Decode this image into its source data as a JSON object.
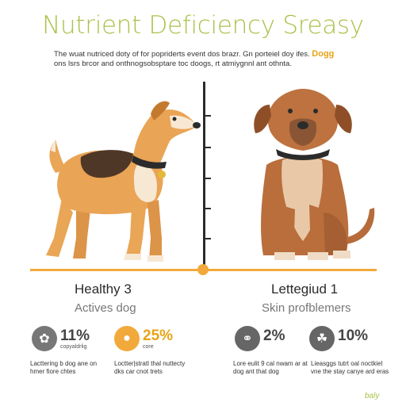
{
  "header": {
    "title": "Nutrient Deficiency Sreasy",
    "subtitle_line1": "The wuat nutriced doty of for popriderts event dos brazr. Gn porteiel doy ifes.",
    "subtitle_accent": "Dogg",
    "subtitle_line2": "ons lsrs brcor and onthnogsobsptare toc doogs, rt atmiygnnl ant othnta."
  },
  "left_panel": {
    "title": "Healthy 3",
    "subtitle": "Actives dog",
    "stats": [
      {
        "icon": "paw-icon",
        "value": "11%",
        "label": "copyaldrlig",
        "description": "Lacttering b dog ane on hmer fiore chtes",
        "color": "#777777"
      },
      {
        "icon": "person-icon",
        "value": "25%",
        "label": "core",
        "description": "Loctter|stratl thal nuttecty dks car cnot trets",
        "color": "#f2a93b"
      }
    ]
  },
  "right_panel": {
    "title": "Lettegiud 1",
    "subtitle": "Skin profblemers",
    "stats": [
      {
        "icon": "skin-icon",
        "value": "2%",
        "label": "",
        "description": "Lore eulit 9 cal nwam ar at dog ant that dog",
        "color": "#666666"
      },
      {
        "icon": "paw-print-icon",
        "value": "10%",
        "label": "",
        "description": "Lieasggs tutrt oal noctkiel vne the stay canye ard eras",
        "color": "#666666"
      }
    ]
  },
  "footer": {
    "logo": "baly"
  }
}
